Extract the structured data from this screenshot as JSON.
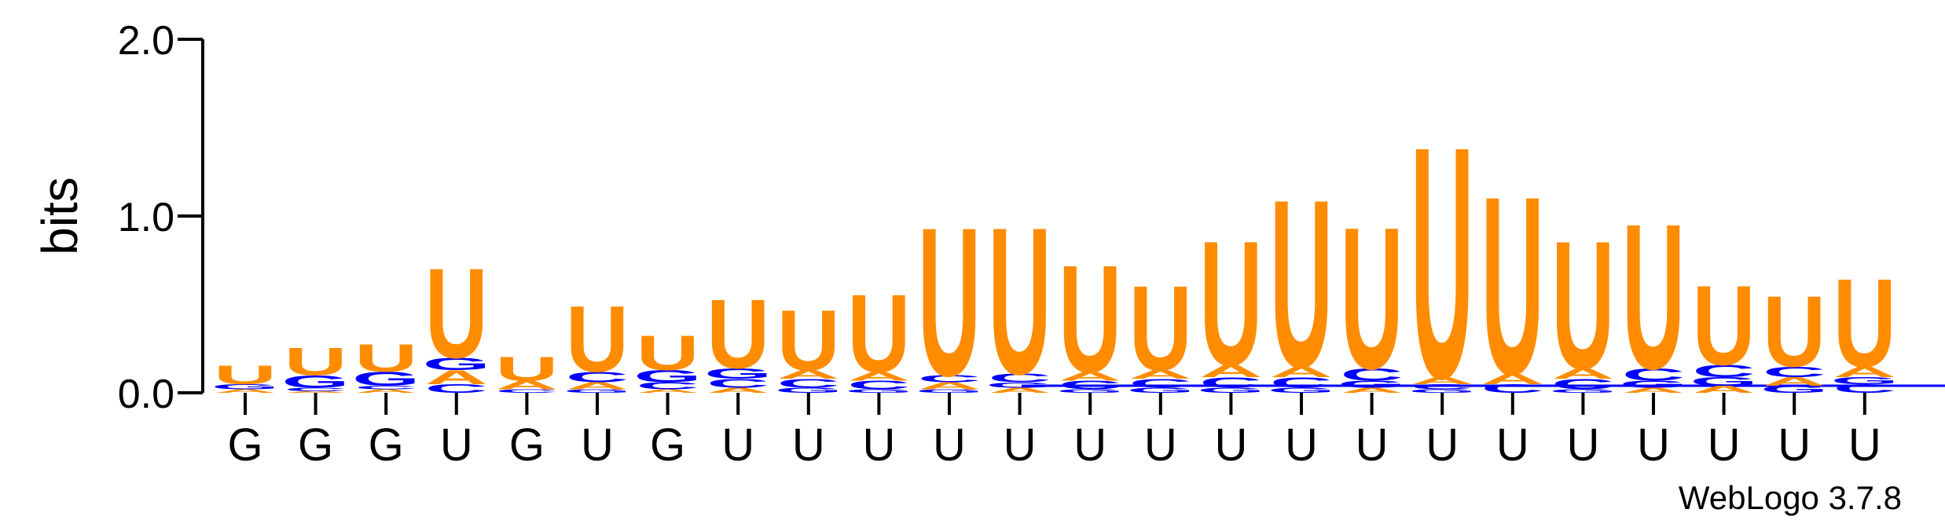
{
  "chart_data": {
    "type": "sequence-logo",
    "ylabel": "bits",
    "ylim": [
      0,
      2.0
    ],
    "yticks": [
      "0.0",
      "1.0",
      "2.0"
    ],
    "credit": "WebLogo 3.7.8",
    "colors": {
      "U": "#ff8c00",
      "G": "#0000ff",
      "C": "#0000ff",
      "A": "#ff8c00"
    },
    "positions": [
      {
        "label": "G",
        "stack": [
          {
            "letter": "A",
            "height": 0.02
          },
          {
            "letter": "G",
            "height": 0.03
          },
          {
            "letter": "U",
            "height": 0.11
          }
        ]
      },
      {
        "label": "G",
        "stack": [
          {
            "letter": "A",
            "height": 0.01
          },
          {
            "letter": "C",
            "height": 0.02
          },
          {
            "letter": "G",
            "height": 0.07
          },
          {
            "letter": "U",
            "height": 0.16
          }
        ]
      },
      {
        "label": "G",
        "stack": [
          {
            "letter": "A",
            "height": 0.02
          },
          {
            "letter": "C",
            "height": 0.02
          },
          {
            "letter": "G",
            "height": 0.08
          },
          {
            "letter": "U",
            "height": 0.16
          }
        ]
      },
      {
        "label": "U",
        "stack": [
          {
            "letter": "C",
            "height": 0.05
          },
          {
            "letter": "A",
            "height": 0.08
          },
          {
            "letter": "G",
            "height": 0.07
          },
          {
            "letter": "U",
            "height": 0.52
          }
        ]
      },
      {
        "label": "G",
        "stack": [
          {
            "letter": "C",
            "height": 0.02
          },
          {
            "letter": "A",
            "height": 0.05
          },
          {
            "letter": "U",
            "height": 0.14
          }
        ]
      },
      {
        "label": "U",
        "stack": [
          {
            "letter": "G",
            "height": 0.02
          },
          {
            "letter": "A",
            "height": 0.04
          },
          {
            "letter": "C",
            "height": 0.06
          },
          {
            "letter": "U",
            "height": 0.38
          }
        ]
      },
      {
        "label": "G",
        "stack": [
          {
            "letter": "A",
            "height": 0.02
          },
          {
            "letter": "C",
            "height": 0.04
          },
          {
            "letter": "G",
            "height": 0.07
          },
          {
            "letter": "U",
            "height": 0.2
          }
        ]
      },
      {
        "label": "U",
        "stack": [
          {
            "letter": "A",
            "height": 0.03
          },
          {
            "letter": "C",
            "height": 0.05
          },
          {
            "letter": "G",
            "height": 0.06
          },
          {
            "letter": "U",
            "height": 0.4
          }
        ]
      },
      {
        "label": "U",
        "stack": [
          {
            "letter": "G",
            "height": 0.03
          },
          {
            "letter": "C",
            "height": 0.05
          },
          {
            "letter": "A",
            "height": 0.05
          },
          {
            "letter": "U",
            "height": 0.35
          }
        ]
      },
      {
        "label": "U",
        "stack": [
          {
            "letter": "G",
            "height": 0.02
          },
          {
            "letter": "C",
            "height": 0.05
          },
          {
            "letter": "A",
            "height": 0.05
          },
          {
            "letter": "U",
            "height": 0.45
          }
        ]
      },
      {
        "label": "U",
        "stack": [
          {
            "letter": "G",
            "height": 0.02
          },
          {
            "letter": "A",
            "height": 0.04
          },
          {
            "letter": "C",
            "height": 0.04
          },
          {
            "letter": "U",
            "height": 0.86
          }
        ]
      },
      {
        "label": "U",
        "stack": [
          {
            "letter": "A",
            "height": 0.03
          },
          {
            "letter": "G",
            "height": 0.03
          },
          {
            "letter": "C",
            "height": 0.05
          },
          {
            "letter": "U",
            "height": 0.85
          }
        ]
      },
      {
        "label": "U",
        "stack": [
          {
            "letter": "G",
            "height": 0.02
          },
          {
            "letter": "C",
            "height": 0.05
          },
          {
            "letter": "A",
            "height": 0.05
          },
          {
            "letter": "U",
            "height": 0.62
          }
        ]
      },
      {
        "label": "U",
        "stack": [
          {
            "letter": "G",
            "height": 0.03
          },
          {
            "letter": "C",
            "height": 0.05
          },
          {
            "letter": "A",
            "height": 0.05
          },
          {
            "letter": "U",
            "height": 0.49
          }
        ]
      },
      {
        "label": "U",
        "stack": [
          {
            "letter": "G",
            "height": 0.03
          },
          {
            "letter": "C",
            "height": 0.06
          },
          {
            "letter": "A",
            "height": 0.07
          },
          {
            "letter": "U",
            "height": 0.72
          }
        ]
      },
      {
        "label": "U",
        "stack": [
          {
            "letter": "G",
            "height": 0.03
          },
          {
            "letter": "C",
            "height": 0.06
          },
          {
            "letter": "A",
            "height": 0.06
          },
          {
            "letter": "U",
            "height": 0.97
          }
        ]
      },
      {
        "label": "U",
        "stack": [
          {
            "letter": "A",
            "height": 0.03
          },
          {
            "letter": "G",
            "height": 0.04
          },
          {
            "letter": "C",
            "height": 0.07
          },
          {
            "letter": "U",
            "height": 0.82
          }
        ]
      },
      {
        "label": "U",
        "stack": [
          {
            "letter": "G",
            "height": 0.02
          },
          {
            "letter": "C",
            "height": 0.03
          },
          {
            "letter": "A",
            "height": 0.04
          },
          {
            "letter": "U",
            "height": 1.34
          }
        ]
      },
      {
        "label": "U",
        "stack": [
          {
            "letter": "C",
            "height": 0.05
          },
          {
            "letter": "A",
            "height": 0.06
          },
          {
            "letter": "U",
            "height": 1.03
          }
        ]
      },
      {
        "label": "U",
        "stack": [
          {
            "letter": "G",
            "height": 0.02
          },
          {
            "letter": "C",
            "height": 0.06
          },
          {
            "letter": "A",
            "height": 0.06
          },
          {
            "letter": "U",
            "height": 0.74
          }
        ]
      },
      {
        "label": "U",
        "stack": [
          {
            "letter": "A",
            "height": 0.03
          },
          {
            "letter": "G",
            "height": 0.04
          },
          {
            "letter": "C",
            "height": 0.07
          },
          {
            "letter": "U",
            "height": 0.84
          }
        ]
      },
      {
        "label": "U",
        "stack": [
          {
            "letter": "A",
            "height": 0.04
          },
          {
            "letter": "G",
            "height": 0.05
          },
          {
            "letter": "C",
            "height": 0.07
          },
          {
            "letter": "U",
            "height": 0.46
          }
        ]
      },
      {
        "label": "U",
        "stack": [
          {
            "letter": "G",
            "height": 0.04
          },
          {
            "letter": "A",
            "height": 0.05
          },
          {
            "letter": "C",
            "height": 0.06
          },
          {
            "letter": "U",
            "height": 0.41
          }
        ]
      },
      {
        "label": "U",
        "stack": [
          {
            "letter": "C",
            "height": 0.05
          },
          {
            "letter": "G",
            "height": 0.04
          },
          {
            "letter": "A",
            "height": 0.06
          },
          {
            "letter": "U",
            "height": 0.51
          }
        ]
      }
    ]
  }
}
